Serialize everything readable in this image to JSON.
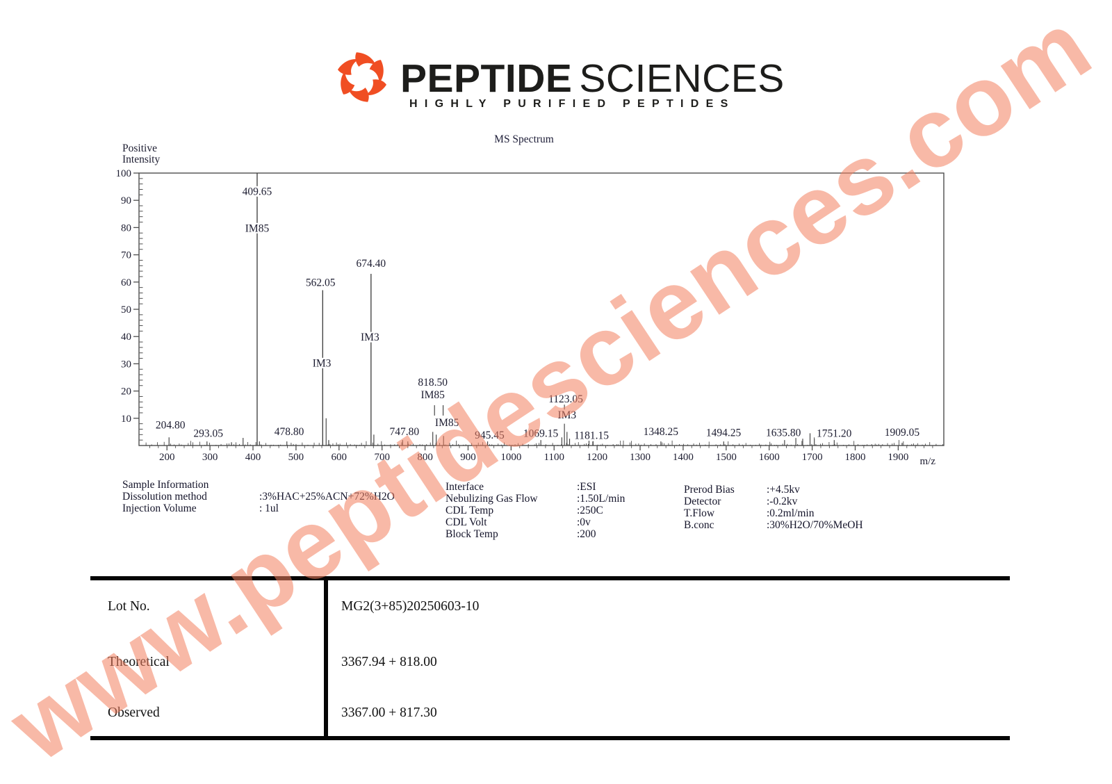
{
  "logo": {
    "title_primary": "PEPTIDE",
    "title_secondary": "SCIENCES",
    "tagline": "HIGHLY PURIFIED PEPTIDES",
    "icon_color": "#F04E23"
  },
  "watermark": {
    "text": "www.peptidesciences.com",
    "color_rgba": "rgba(243,128,94,0.55)"
  },
  "chart_data": {
    "type": "bar",
    "title": "MS Spectrum",
    "ylabel_lines": [
      "Positive",
      "Intensity"
    ],
    "xlabel": "m/z",
    "xlim": [
      135,
      2006
    ],
    "ylim": [
      0,
      100
    ],
    "x_ticks": [
      200,
      300,
      400,
      500,
      600,
      700,
      800,
      900,
      1000,
      1100,
      1200,
      1300,
      1400,
      1500,
      1600,
      1700,
      1800,
      1900
    ],
    "y_ticks": [
      10,
      20,
      30,
      40,
      50,
      60,
      70,
      80,
      90,
      100
    ],
    "grid": false,
    "peaks": [
      {
        "mz": 204.8,
        "h": 3
      },
      {
        "mz": 293.05,
        "h": 1.5
      },
      {
        "mz": 350,
        "h": 1.2
      },
      {
        "mz": 377,
        "h": 2.8
      },
      {
        "mz": 409.65,
        "h": 100
      },
      {
        "mz": 415,
        "h": 1.5
      },
      {
        "mz": 478.8,
        "h": 1.5
      },
      {
        "mz": 562.05,
        "h": 57
      },
      {
        "mz": 570,
        "h": 10
      },
      {
        "mz": 576,
        "h": 2
      },
      {
        "mz": 674.4,
        "h": 63
      },
      {
        "mz": 681,
        "h": 4
      },
      {
        "mz": 747.8,
        "h": 2
      },
      {
        "mz": 760,
        "h": 1.5
      },
      {
        "mz": 818,
        "h": 5
      },
      {
        "mz": 826,
        "h": 4
      },
      {
        "mz": 843,
        "h": 3.5
      },
      {
        "mz": 945.45,
        "h": 1.5
      },
      {
        "mz": 1069.15,
        "h": 2
      },
      {
        "mz": 1118,
        "h": 3
      },
      {
        "mz": 1124,
        "h": 8
      },
      {
        "mz": 1130,
        "h": 5
      },
      {
        "mz": 1136,
        "h": 2.5
      },
      {
        "mz": 1181.15,
        "h": 2.5
      },
      {
        "mz": 1190,
        "h": 1.5
      },
      {
        "mz": 1348.25,
        "h": 1.5
      },
      {
        "mz": 1494.25,
        "h": 1.5
      },
      {
        "mz": 1635.8,
        "h": 2
      },
      {
        "mz": 1662,
        "h": 3
      },
      {
        "mz": 1678,
        "h": 2.5
      },
      {
        "mz": 1695,
        "h": 4.5
      },
      {
        "mz": 1705,
        "h": 3
      },
      {
        "mz": 1751.2,
        "h": 2
      },
      {
        "mz": 1909.05,
        "h": 1
      }
    ],
    "segments": [
      {
        "mz": 822,
        "y1": 11,
        "y2": 14.8
      },
      {
        "mz": 842,
        "y1": 11,
        "y2": 14.8
      },
      {
        "mz": 1124,
        "y1": 13.2,
        "y2": 15
      }
    ],
    "annotations": [
      {
        "text": "409.65",
        "mz": 409.65,
        "y": 92
      },
      {
        "text": "IM85",
        "mz": 409.65,
        "y": 78.5
      },
      {
        "text": "562.05",
        "mz": 557,
        "y": 58.5
      },
      {
        "text": "IM3",
        "mz": 560,
        "y": 29
      },
      {
        "text": "674.40",
        "mz": 674.4,
        "y": 65.5
      },
      {
        "text": "IM3",
        "mz": 672,
        "y": 38.5
      },
      {
        "text": "818.50",
        "mz": 818,
        "y": 22
      },
      {
        "text": "IM85",
        "mz": 818,
        "y": 17.3
      },
      {
        "text": "IM85",
        "mz": 851,
        "y": 7.2
      },
      {
        "text": "1123.05",
        "mz": 1127,
        "y": 15.8
      },
      {
        "text": "IM3",
        "mz": 1130,
        "y": 10
      },
      {
        "text": "204.80",
        "mz": 208,
        "y": 6.2
      },
      {
        "text": "293.05",
        "mz": 296,
        "y": 3.2
      },
      {
        "text": "478.80",
        "mz": 484,
        "y": 3.8
      },
      {
        "text": "747.80",
        "mz": 752,
        "y": 3.8
      },
      {
        "text": "945.45",
        "mz": 950,
        "y": 2.6
      },
      {
        "text": "1069.15",
        "mz": 1069,
        "y": 3.2
      },
      {
        "text": "1181.15",
        "mz": 1187,
        "y": 2.4
      },
      {
        "text": "1348.25",
        "mz": 1348,
        "y": 3.8
      },
      {
        "text": "1494.25",
        "mz": 1494,
        "y": 3.4
      },
      {
        "text": "1635.80",
        "mz": 1633,
        "y": 3.4
      },
      {
        "text": "1751.20",
        "mz": 1751,
        "y": 3.2
      },
      {
        "text": "1909.05",
        "mz": 1909,
        "y": 3.6
      }
    ]
  },
  "sample_info": {
    "col1": {
      "header": "Sample Information",
      "rows": [
        {
          "label": "Dissolution method",
          "value": ":3%HAC+25%ACN+72%H2O"
        },
        {
          "label": "Injection Volume",
          "value": ": 1ul"
        }
      ]
    },
    "col2": {
      "rows": [
        {
          "label": "Interface",
          "value": ":ESI"
        },
        {
          "label": "Nebulizing Gas Flow",
          "value": ":1.50L/min"
        },
        {
          "label": "CDL Temp",
          "value": ":250C"
        },
        {
          "label": "CDL Volt",
          "value": ":0v"
        },
        {
          "label": "Block Temp",
          "value": ":200"
        }
      ]
    },
    "col3": {
      "rows": [
        {
          "label": "Prerod Bias",
          "value": ":+4.5kv"
        },
        {
          "label": "Detector",
          "value": ":-0.2kv"
        },
        {
          "label": "T.Flow",
          "value": ":0.2ml/min"
        },
        {
          "label": "B.conc",
          "value": ":30%H2O/70%MeOH"
        }
      ]
    }
  },
  "results_table": {
    "rows": [
      {
        "label": "Lot No.",
        "value": "MG2(3+85)20250603-10"
      },
      {
        "label": "Theoretical",
        "value": "3367.94 + 818.00"
      },
      {
        "label": "Observed",
        "value": "3367.00 + 817.30"
      }
    ]
  }
}
